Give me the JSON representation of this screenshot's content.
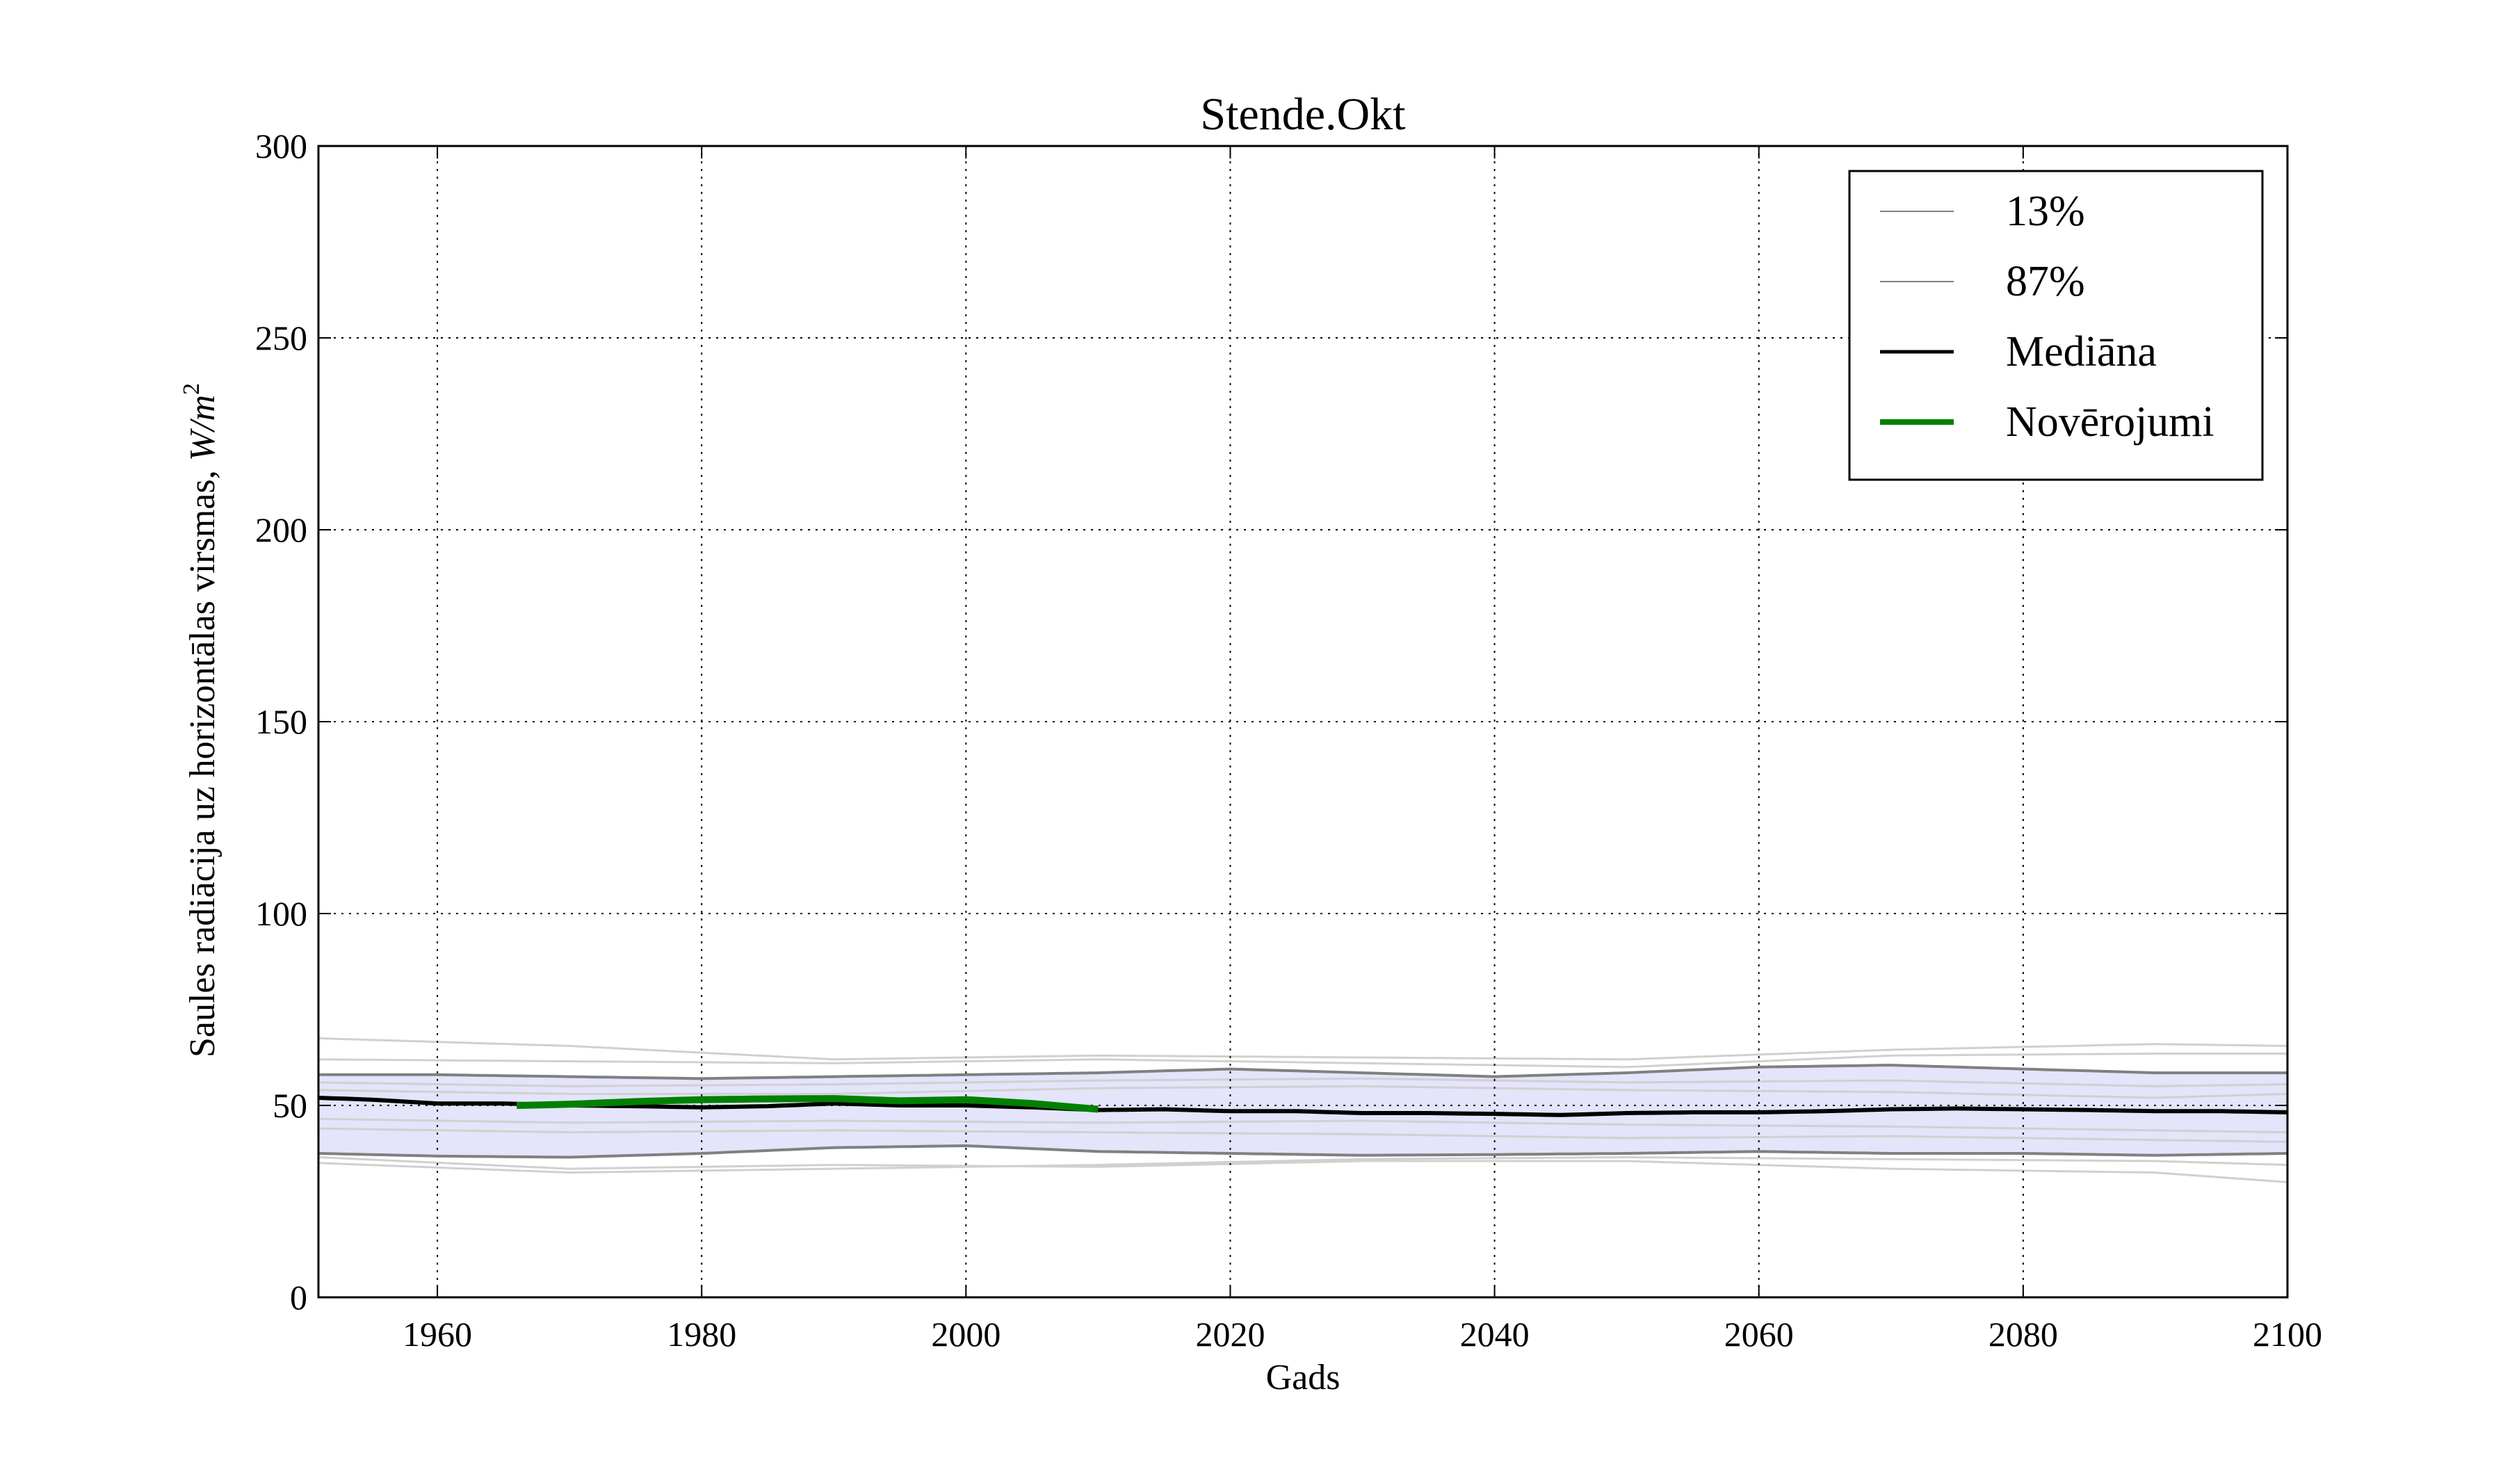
{
  "chart_data": {
    "type": "line",
    "title": "Stende.Okt",
    "xlabel": "Gads",
    "ylabel": "Saules radiācija uz horizontālas virsmas, W/m²",
    "ylabel_text": "Saules radiācija uz horizontālas virsmas, ",
    "ylabel_unit_base": "W/m",
    "ylabel_unit_exp": "2",
    "xlim": [
      1951,
      2100
    ],
    "ylim": [
      0,
      300
    ],
    "xticks": [
      1960,
      1980,
      2000,
      2020,
      2040,
      2060,
      2080,
      2100
    ],
    "yticks": [
      0,
      50,
      100,
      150,
      200,
      250,
      300
    ],
    "grid": true,
    "legend_position": "top-right",
    "colors": {
      "band_fill": "#e4e4fb",
      "ensemble": "#d0d0d0",
      "percentile": "#808080",
      "median": "#000000",
      "observations": "#008000"
    },
    "legend": [
      {
        "label": "13%",
        "color": "#808080",
        "width": 2
      },
      {
        "label": "87%",
        "color": "#808080",
        "width": 2
      },
      {
        "label": "Mediāna",
        "color": "#000000",
        "width": 5
      },
      {
        "label": "Novērojumi",
        "color": "#008000",
        "width": 8
      }
    ],
    "series": [
      {
        "name": "13%",
        "x": [
          1951,
          1960,
          1970,
          1980,
          1990,
          2000,
          2010,
          2020,
          2030,
          2040,
          2050,
          2060,
          2070,
          2080,
          2090,
          2100
        ],
        "y": [
          37.5,
          36.8,
          36.5,
          37.5,
          39.0,
          39.5,
          38.0,
          37.5,
          37.0,
          37.2,
          37.5,
          38.0,
          37.5,
          37.5,
          37.0,
          37.5
        ]
      },
      {
        "name": "87%",
        "x": [
          1951,
          1960,
          1970,
          1980,
          1990,
          2000,
          2010,
          2020,
          2030,
          2040,
          2050,
          2060,
          2070,
          2080,
          2090,
          2100
        ],
        "y": [
          58.0,
          58.0,
          57.5,
          57.0,
          57.5,
          58.0,
          58.5,
          59.5,
          58.5,
          57.5,
          58.5,
          60.0,
          60.5,
          59.5,
          58.5,
          58.5
        ]
      },
      {
        "name": "Mediāna",
        "x": [
          1951,
          1955,
          1960,
          1965,
          1970,
          1975,
          1980,
          1985,
          1990,
          1995,
          2000,
          2005,
          2010,
          2015,
          2020,
          2025,
          2030,
          2035,
          2040,
          2045,
          2050,
          2055,
          2060,
          2065,
          2070,
          2075,
          2080,
          2085,
          2090,
          2095,
          2100
        ],
        "y": [
          52.0,
          51.5,
          50.5,
          50.5,
          50.0,
          49.8,
          49.5,
          49.8,
          50.5,
          50.0,
          50.0,
          49.5,
          48.8,
          49.0,
          48.5,
          48.5,
          48.0,
          48.0,
          47.8,
          47.5,
          48.0,
          48.2,
          48.2,
          48.5,
          49.0,
          49.2,
          49.0,
          48.8,
          48.5,
          48.5,
          48.2
        ]
      },
      {
        "name": "Novērojumi",
        "x": [
          1966,
          1970,
          1975,
          1980,
          1985,
          1990,
          1995,
          2000,
          2005,
          2010
        ],
        "y": [
          50.0,
          50.3,
          51.0,
          51.5,
          51.7,
          51.8,
          51.2,
          51.5,
          50.5,
          49.0
        ]
      }
    ],
    "ensemble_members": [
      {
        "x": [
          1951,
          1970,
          1990,
          2010,
          2030,
          2050,
          2070,
          2090,
          2100
        ],
        "y": [
          67.5,
          65.5,
          62.0,
          63.0,
          62.5,
          62.0,
          64.5,
          66.0,
          65.5
        ]
      },
      {
        "x": [
          1951,
          1970,
          1990,
          2010,
          2030,
          2050,
          2070,
          2090,
          2100
        ],
        "y": [
          62.0,
          61.5,
          61.0,
          62.0,
          61.0,
          60.0,
          63.0,
          63.5,
          63.5
        ]
      },
      {
        "x": [
          1951,
          1970,
          1990,
          2010,
          2030,
          2050,
          2070,
          2090,
          2100
        ],
        "y": [
          56.0,
          55.0,
          55.5,
          56.5,
          57.0,
          56.0,
          56.5,
          55.0,
          55.5
        ]
      },
      {
        "x": [
          1951,
          1970,
          1990,
          2010,
          2030,
          2050,
          2070,
          2090,
          2100
        ],
        "y": [
          54.0,
          53.0,
          53.0,
          54.5,
          55.0,
          54.0,
          53.5,
          52.0,
          53.0
        ]
      },
      {
        "x": [
          1951,
          1970,
          1990,
          2010,
          2030,
          2050,
          2070,
          2090,
          2100
        ],
        "y": [
          46.5,
          45.5,
          46.0,
          45.5,
          46.0,
          45.0,
          44.5,
          43.5,
          43.0
        ]
      },
      {
        "x": [
          1951,
          1970,
          1990,
          2010,
          2030,
          2050,
          2070,
          2090,
          2100
        ],
        "y": [
          44.0,
          43.0,
          43.5,
          43.0,
          42.5,
          41.5,
          42.0,
          41.0,
          40.5
        ]
      },
      {
        "x": [
          1951,
          1970,
          1990,
          2010,
          2030,
          2050,
          2070,
          2090,
          2100
        ],
        "y": [
          36.5,
          33.5,
          34.5,
          34.0,
          35.5,
          35.5,
          33.5,
          32.5,
          30.0
        ]
      },
      {
        "x": [
          1951,
          1970,
          1990,
          2010,
          2030,
          2050,
          2070,
          2090,
          2100
        ],
        "y": [
          35.0,
          32.5,
          33.5,
          34.5,
          36.0,
          36.5,
          36.0,
          35.5,
          34.5
        ]
      }
    ]
  }
}
